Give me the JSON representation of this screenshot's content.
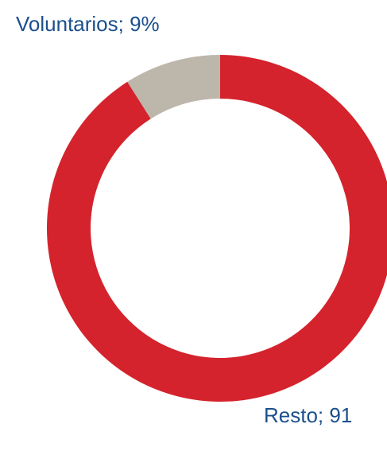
{
  "chart_data": {
    "type": "donut",
    "values": [
      9,
      91
    ],
    "value_labels": [
      "Voluntarios; 9%",
      "Resto; 91"
    ],
    "colors": [
      "#bdb6ab",
      "#d4232c"
    ]
  }
}
